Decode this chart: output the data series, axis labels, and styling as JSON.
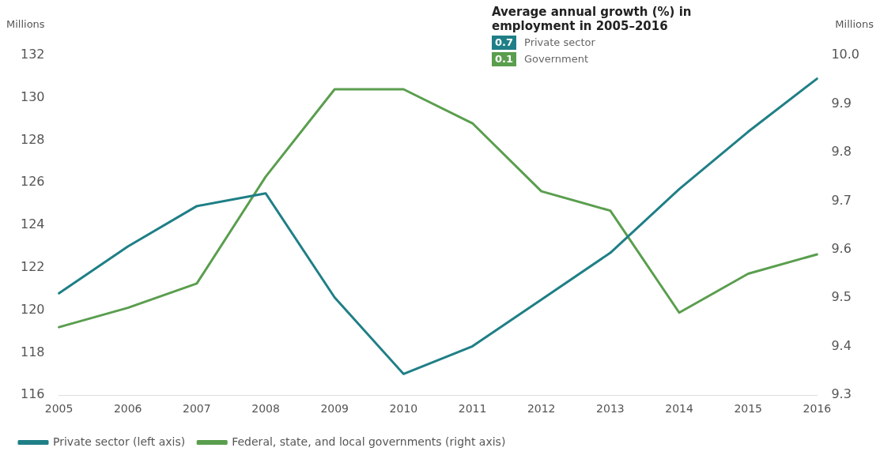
{
  "chart_data": {
    "type": "line",
    "categories": [
      "2005",
      "2006",
      "2007",
      "2008",
      "2009",
      "2010",
      "2011",
      "2012",
      "2013",
      "2014",
      "2015",
      "2016"
    ],
    "series": [
      {
        "name": "Private sector (left axis)",
        "color": "#1f7f86",
        "values": [
          120.8,
          123.0,
          124.9,
          125.5,
          120.6,
          117.0,
          118.3,
          120.5,
          122.7,
          125.7,
          128.4,
          130.9
        ]
      },
      {
        "name": "Federal, state, and local governments (right axis)",
        "color": "#5a9e4e",
        "axis": "y2",
        "values": [
          9.44,
          9.48,
          9.53,
          9.75,
          9.93,
          9.93,
          9.86,
          9.72,
          9.68,
          9.47,
          9.55,
          9.59
        ]
      }
    ],
    "ylabel": "Millions",
    "y2label": "Millions",
    "ylim": [
      116,
      132
    ],
    "yticks": [
      116,
      118,
      120,
      122,
      124,
      126,
      128,
      130,
      132
    ],
    "y2lim": [
      9.3,
      10.0
    ],
    "y2ticks": [
      {
        "value": 9.3,
        "label": "9.3"
      },
      {
        "value": 9.4,
        "label": "9.4"
      },
      {
        "value": 9.5,
        "label": "9.5"
      },
      {
        "value": 9.6,
        "label": "9.6"
      },
      {
        "value": 9.7,
        "label": "9.7"
      },
      {
        "value": 9.8,
        "label": "9.8"
      },
      {
        "value": 9.9,
        "label": "9.9"
      },
      {
        "value": 10.0,
        "label": "10.0"
      }
    ],
    "annotations": [
      "Average annual growth (%) in employment in 2005–2016",
      "0.7 Private sector",
      "0.1 Government"
    ],
    "legend": "bottom",
    "grid": false,
    "marker": "none",
    "line_style": "solid"
  }
}
